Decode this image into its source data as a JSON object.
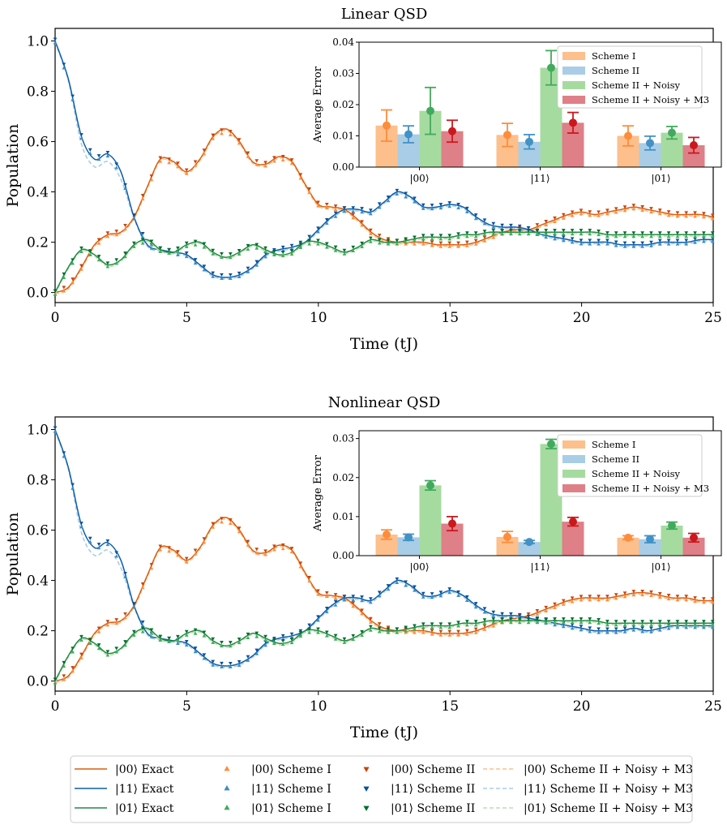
{
  "chart_data": [
    {
      "type": "line",
      "title": "Linear QSD",
      "xlabel": "Time (tJ)",
      "ylabel": "Population",
      "xlim": [
        0,
        25
      ],
      "ylim": [
        -0.04,
        1.05
      ],
      "xticks": [
        0,
        5,
        10,
        15,
        20,
        25
      ],
      "xtick_labels": [
        "0",
        "5",
        "10",
        "15",
        "20",
        "25"
      ],
      "yticks": [
        0.0,
        0.2,
        0.4,
        0.6,
        0.8,
        1.0
      ],
      "ytick_labels": [
        "0.0",
        "0.2",
        "0.4",
        "0.6",
        "0.8",
        "1.0"
      ],
      "series": [
        {
          "name": "|00⟩",
          "color": "#d95f0e",
          "light": "#fdbf8b",
          "tri": "#fd8d3c",
          "x": [
            0,
            0.5,
            1,
            1.5,
            2,
            2.5,
            3,
            3.5,
            4,
            4.5,
            5,
            5.5,
            6,
            6.5,
            7,
            7.5,
            8,
            8.5,
            9,
            9.5,
            10,
            10.5,
            11,
            11.5,
            12,
            12.5,
            13,
            13.5,
            14,
            14.5,
            15,
            15.5,
            16,
            16.5,
            17,
            17.5,
            18,
            18.5,
            19,
            19.5,
            20,
            20.5,
            21,
            21.5,
            22,
            22.5,
            23,
            23.5,
            24,
            24.5,
            25
          ],
          "y": [
            0,
            0.02,
            0.1,
            0.19,
            0.23,
            0.24,
            0.3,
            0.42,
            0.53,
            0.52,
            0.48,
            0.53,
            0.62,
            0.65,
            0.6,
            0.52,
            0.51,
            0.54,
            0.52,
            0.43,
            0.35,
            0.34,
            0.33,
            0.29,
            0.24,
            0.21,
            0.2,
            0.2,
            0.2,
            0.19,
            0.19,
            0.19,
            0.2,
            0.22,
            0.24,
            0.25,
            0.25,
            0.27,
            0.29,
            0.31,
            0.32,
            0.31,
            0.32,
            0.33,
            0.34,
            0.33,
            0.32,
            0.31,
            0.31,
            0.31,
            0.3
          ]
        },
        {
          "name": "|11⟩",
          "color": "#0b5ea8",
          "light": "#a9cde6",
          "tri": "#3b8dc4",
          "x": [
            0,
            0.5,
            1,
            1.5,
            2,
            2.5,
            3,
            3.5,
            4,
            4.5,
            5,
            5.5,
            6,
            6.5,
            7,
            7.5,
            8,
            8.5,
            9,
            9.5,
            10,
            10.5,
            11,
            11.5,
            12,
            12.5,
            13,
            13.5,
            14,
            14.5,
            15,
            15.5,
            16,
            16.5,
            17,
            17.5,
            18,
            18.5,
            19,
            19.5,
            20,
            20.5,
            21,
            21.5,
            22,
            22.5,
            23,
            23.5,
            24,
            24.5,
            25
          ],
          "y": [
            1.0,
            0.85,
            0.62,
            0.53,
            0.55,
            0.48,
            0.3,
            0.19,
            0.17,
            0.16,
            0.15,
            0.11,
            0.07,
            0.06,
            0.07,
            0.1,
            0.15,
            0.17,
            0.18,
            0.2,
            0.25,
            0.3,
            0.33,
            0.33,
            0.32,
            0.36,
            0.4,
            0.38,
            0.34,
            0.34,
            0.35,
            0.34,
            0.3,
            0.27,
            0.26,
            0.26,
            0.25,
            0.23,
            0.22,
            0.21,
            0.2,
            0.2,
            0.2,
            0.19,
            0.19,
            0.19,
            0.2,
            0.2,
            0.2,
            0.21,
            0.21
          ]
        },
        {
          "name": "|01⟩",
          "color": "#238b45",
          "light": "#b7e2ae",
          "tri": "#41ab5d",
          "x": [
            0,
            0.5,
            1,
            1.5,
            2,
            2.5,
            3,
            3.5,
            4,
            4.5,
            5,
            5.5,
            6,
            6.5,
            7,
            7.5,
            8,
            8.5,
            9,
            9.5,
            10,
            10.5,
            11,
            11.5,
            12,
            12.5,
            13,
            13.5,
            14,
            14.5,
            15,
            15.5,
            16,
            16.5,
            17,
            17.5,
            18,
            18.5,
            19,
            19.5,
            20,
            20.5,
            21,
            21.5,
            22,
            22.5,
            23,
            23.5,
            24,
            24.5,
            25
          ],
          "y": [
            0,
            0.1,
            0.17,
            0.15,
            0.11,
            0.13,
            0.19,
            0.21,
            0.17,
            0.16,
            0.19,
            0.2,
            0.16,
            0.14,
            0.16,
            0.19,
            0.17,
            0.15,
            0.16,
            0.2,
            0.2,
            0.18,
            0.16,
            0.18,
            0.21,
            0.2,
            0.2,
            0.21,
            0.22,
            0.22,
            0.22,
            0.23,
            0.23,
            0.24,
            0.24,
            0.24,
            0.24,
            0.24,
            0.24,
            0.24,
            0.24,
            0.24,
            0.23,
            0.23,
            0.23,
            0.23,
            0.23,
            0.23,
            0.23,
            0.23,
            0.23
          ]
        }
      ],
      "inset": {
        "ylabel": "Average Error",
        "ylim": [
          0,
          0.04
        ],
        "yticks": [
          0,
          0.01,
          0.02,
          0.03,
          0.04
        ],
        "ytick_labels": [
          "0.00",
          "0.01",
          "0.02",
          "0.03",
          "0.04"
        ],
        "categories": [
          "|00⟩",
          "|11⟩",
          "|01⟩"
        ],
        "legend": [
          "Scheme I",
          "Scheme II",
          "Scheme II + Noisy",
          "Scheme II + Noisy + M3"
        ],
        "bar_colors": [
          "#fdbf8b",
          "#a9cde6",
          "#a6dba0",
          "#df7f87"
        ],
        "point_colors": [
          "#fd8d3c",
          "#4292c6",
          "#41ab5d",
          "#cb181d"
        ],
        "values": [
          [
            0.0133,
            0.0105,
            0.018,
            0.0115
          ],
          [
            0.0103,
            0.0081,
            0.0318,
            0.0142
          ],
          [
            0.01,
            0.0077,
            0.011,
            0.007
          ]
        ],
        "errors": [
          [
            0.005,
            0.0027,
            0.0075,
            0.0035
          ],
          [
            0.0037,
            0.0023,
            0.0055,
            0.0033
          ],
          [
            0.0032,
            0.0022,
            0.002,
            0.0025
          ]
        ]
      }
    },
    {
      "type": "line",
      "title": "Nonlinear QSD",
      "xlabel": "Time (tJ)",
      "ylabel": "Population",
      "xlim": [
        0,
        25
      ],
      "ylim": [
        -0.04,
        1.05
      ],
      "xticks": [
        0,
        5,
        10,
        15,
        20,
        25
      ],
      "xtick_labels": [
        "0",
        "5",
        "10",
        "15",
        "20",
        "25"
      ],
      "yticks": [
        0.0,
        0.2,
        0.4,
        0.6,
        0.8,
        1.0
      ],
      "ytick_labels": [
        "0.0",
        "0.2",
        "0.4",
        "0.6",
        "0.8",
        "1.0"
      ],
      "series": [
        {
          "name": "|00⟩",
          "color": "#d95f0e",
          "light": "#fdbf8b",
          "tri": "#fd8d3c",
          "x": [
            0,
            0.5,
            1,
            1.5,
            2,
            2.5,
            3,
            3.5,
            4,
            4.5,
            5,
            5.5,
            6,
            6.5,
            7,
            7.5,
            8,
            8.5,
            9,
            9.5,
            10,
            10.5,
            11,
            11.5,
            12,
            12.5,
            13,
            13.5,
            14,
            14.5,
            15,
            15.5,
            16,
            16.5,
            17,
            17.5,
            18,
            18.5,
            19,
            19.5,
            20,
            20.5,
            21,
            21.5,
            22,
            22.5,
            23,
            23.5,
            24,
            24.5,
            25
          ],
          "y": [
            0,
            0.02,
            0.1,
            0.19,
            0.23,
            0.24,
            0.3,
            0.42,
            0.53,
            0.52,
            0.48,
            0.53,
            0.62,
            0.65,
            0.6,
            0.52,
            0.51,
            0.54,
            0.52,
            0.43,
            0.35,
            0.34,
            0.33,
            0.29,
            0.24,
            0.21,
            0.2,
            0.2,
            0.2,
            0.19,
            0.19,
            0.19,
            0.2,
            0.22,
            0.24,
            0.25,
            0.26,
            0.28,
            0.3,
            0.32,
            0.33,
            0.33,
            0.33,
            0.34,
            0.35,
            0.35,
            0.34,
            0.33,
            0.33,
            0.32,
            0.32
          ]
        },
        {
          "name": "|11⟩",
          "color": "#0b5ea8",
          "light": "#a9cde6",
          "tri": "#3b8dc4",
          "x": [
            0,
            0.5,
            1,
            1.5,
            2,
            2.5,
            3,
            3.5,
            4,
            4.5,
            5,
            5.5,
            6,
            6.5,
            7,
            7.5,
            8,
            8.5,
            9,
            9.5,
            10,
            10.5,
            11,
            11.5,
            12,
            12.5,
            13,
            13.5,
            14,
            14.5,
            15,
            15.5,
            16,
            16.5,
            17,
            17.5,
            18,
            18.5,
            19,
            19.5,
            20,
            20.5,
            21,
            21.5,
            22,
            22.5,
            23,
            23.5,
            24,
            24.5,
            25
          ],
          "y": [
            1.0,
            0.85,
            0.62,
            0.53,
            0.55,
            0.48,
            0.3,
            0.19,
            0.17,
            0.16,
            0.15,
            0.11,
            0.07,
            0.06,
            0.07,
            0.1,
            0.15,
            0.17,
            0.18,
            0.2,
            0.25,
            0.3,
            0.33,
            0.33,
            0.32,
            0.36,
            0.4,
            0.38,
            0.34,
            0.34,
            0.36,
            0.34,
            0.3,
            0.27,
            0.26,
            0.26,
            0.25,
            0.24,
            0.23,
            0.22,
            0.21,
            0.2,
            0.2,
            0.2,
            0.21,
            0.2,
            0.21,
            0.22,
            0.22,
            0.22,
            0.22
          ]
        },
        {
          "name": "|01⟩",
          "color": "#238b45",
          "light": "#b7e2ae",
          "tri": "#41ab5d",
          "x": [
            0,
            0.5,
            1,
            1.5,
            2,
            2.5,
            3,
            3.5,
            4,
            4.5,
            5,
            5.5,
            6,
            6.5,
            7,
            7.5,
            8,
            8.5,
            9,
            9.5,
            10,
            10.5,
            11,
            11.5,
            12,
            12.5,
            13,
            13.5,
            14,
            14.5,
            15,
            15.5,
            16,
            16.5,
            17,
            17.5,
            18,
            18.5,
            19,
            19.5,
            20,
            20.5,
            21,
            21.5,
            22,
            22.5,
            23,
            23.5,
            24,
            24.5,
            25
          ],
          "y": [
            0,
            0.1,
            0.17,
            0.15,
            0.11,
            0.13,
            0.19,
            0.21,
            0.17,
            0.16,
            0.19,
            0.2,
            0.16,
            0.14,
            0.16,
            0.19,
            0.17,
            0.15,
            0.16,
            0.2,
            0.2,
            0.18,
            0.16,
            0.18,
            0.21,
            0.2,
            0.2,
            0.21,
            0.22,
            0.22,
            0.22,
            0.23,
            0.23,
            0.24,
            0.24,
            0.24,
            0.24,
            0.24,
            0.24,
            0.24,
            0.24,
            0.24,
            0.23,
            0.23,
            0.23,
            0.23,
            0.23,
            0.23,
            0.23,
            0.23,
            0.23
          ]
        }
      ],
      "inset": {
        "ylabel": "Average Error",
        "ylim": [
          0,
          0.032
        ],
        "yticks": [
          0,
          0.01,
          0.02,
          0.03
        ],
        "ytick_labels": [
          "0.00",
          "0.01",
          "0.02",
          "0.03"
        ],
        "categories": [
          "|00⟩",
          "|11⟩",
          "|01⟩"
        ],
        "legend": [
          "Scheme I",
          "Scheme II",
          "Scheme II + Noisy",
          "Scheme II + Noisy + M3"
        ],
        "bar_colors": [
          "#fdbf8b",
          "#a9cde6",
          "#a6dba0",
          "#df7f87"
        ],
        "point_colors": [
          "#fd8d3c",
          "#4292c6",
          "#41ab5d",
          "#cb181d"
        ],
        "values": [
          [
            0.0054,
            0.0047,
            0.018,
            0.0082
          ],
          [
            0.0048,
            0.0035,
            0.0286,
            0.0087
          ],
          [
            0.0046,
            0.0042,
            0.0077,
            0.0046
          ]
        ],
        "errors": [
          [
            0.0012,
            0.0008,
            0.0012,
            0.0018
          ],
          [
            0.0014,
            0.0004,
            0.0012,
            0.0011
          ],
          [
            0.0005,
            0.0009,
            0.0009,
            0.0011
          ]
        ]
      }
    }
  ],
  "legend": {
    "columns": [
      {
        "marker": "line",
        "items": [
          {
            "label": "|00⟩ Exact",
            "color": "#d95f0e"
          },
          {
            "label": "|11⟩ Exact",
            "color": "#0b5ea8"
          },
          {
            "label": "|01⟩ Exact",
            "color": "#238b45"
          }
        ]
      },
      {
        "marker": "tri-up",
        "items": [
          {
            "label": "|00⟩ Scheme I",
            "color": "#fd8d3c"
          },
          {
            "label": "|11⟩ Scheme I",
            "color": "#3b8dc4"
          },
          {
            "label": "|01⟩ Scheme I",
            "color": "#41ab5d"
          }
        ]
      },
      {
        "marker": "tri-down",
        "items": [
          {
            "label": "|00⟩ Scheme II",
            "color": "#c9440a"
          },
          {
            "label": "|11⟩ Scheme II",
            "color": "#08519c"
          },
          {
            "label": "|01⟩ Scheme II",
            "color": "#006d2c"
          }
        ]
      },
      {
        "marker": "dashed",
        "items": [
          {
            "label": "|00⟩ Scheme II + Noisy + M3",
            "color": "#fdbf8b"
          },
          {
            "label": "|11⟩ Scheme II + Noisy + M3",
            "color": "#a9cde6"
          },
          {
            "label": "|01⟩ Scheme II + Noisy + M3",
            "color": "#b7e2ae"
          }
        ]
      }
    ]
  }
}
